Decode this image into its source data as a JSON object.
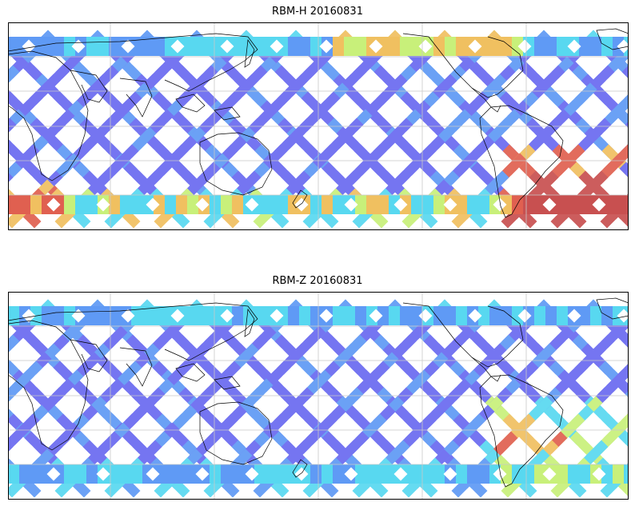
{
  "panels": [
    {
      "id": "h",
      "title": "RBM-H 20160831"
    },
    {
      "id": "z",
      "title": "RBM-Z 20160831"
    }
  ],
  "colors": {
    "low": "#6a6af0",
    "low_mid": "#5f9af5",
    "mid": "#58d8f0",
    "mid_high": "#c8f07a",
    "high": "#f0c060",
    "very_high": "#e06050",
    "extreme": "#c85050",
    "coast": "#000000",
    "grid": "#c8c8c8"
  }
}
